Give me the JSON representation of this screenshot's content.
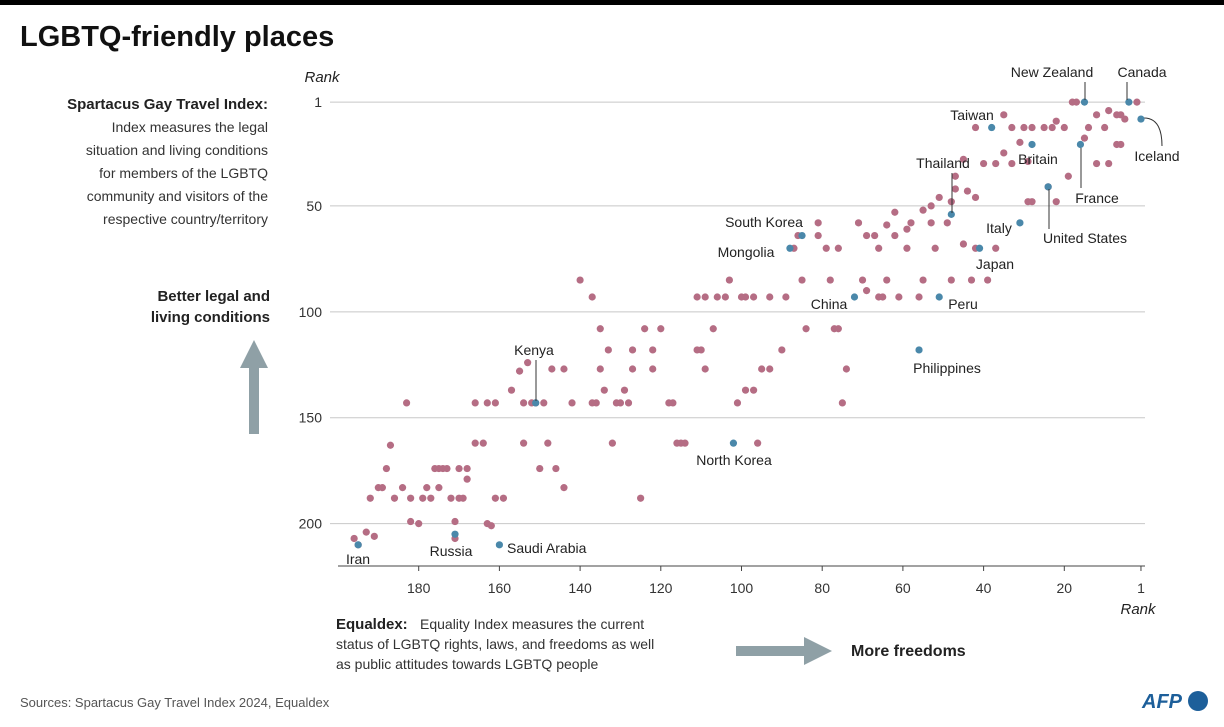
{
  "chart_data": {
    "type": "scatter",
    "title": "LGBTQ-friendly places",
    "y_axis_label": "Rank",
    "x_axis_label": "Rank",
    "y_description": {
      "heading": "Spartacus Gay Travel Index:",
      "lines": [
        "Index measures the legal",
        "situation and living conditions",
        "for members of the LGBTQ",
        "community and visitors of the",
        "respective country/territory"
      ]
    },
    "y_direction": [
      "Better legal and",
      "living conditions"
    ],
    "x_description": {
      "heading": "Equaldex:",
      "lines": [
        "Equality Index measures the current",
        "status of LGBTQ rights, laws, and freedoms as well",
        "as public attitudes towards LGBTQ people"
      ]
    },
    "x_direction": "More freedoms",
    "source": "Sources: Spartacus Gay Travel Index 2024, Equaldex",
    "credit": "AFP",
    "xlim": [
      200,
      0
    ],
    "ylim": [
      0,
      220
    ],
    "xticks": [
      180,
      160,
      140,
      120,
      100,
      80,
      60,
      40,
      20,
      1
    ],
    "yticks": [
      1,
      50,
      100,
      150,
      200
    ],
    "grid": true,
    "series": [
      {
        "color": "#b56d84",
        "x": [
          18,
          17,
          2,
          9,
          7,
          6,
          22,
          12,
          5,
          23,
          25,
          20,
          10,
          14,
          28,
          33,
          35,
          42,
          30,
          7,
          6,
          15,
          31,
          35,
          33,
          29,
          12,
          9,
          19,
          24,
          22,
          28,
          29,
          37,
          40,
          45,
          47,
          47,
          44,
          42,
          51,
          48,
          53,
          55,
          49,
          53,
          62,
          59,
          58,
          62,
          64,
          71,
          67,
          69,
          66,
          59,
          52,
          42,
          37,
          45,
          43,
          39,
          48,
          55,
          64,
          70,
          78,
          76,
          81,
          79,
          86,
          87,
          81,
          61,
          66,
          65,
          69,
          56,
          93,
          89,
          99,
          100,
          97,
          103,
          106,
          109,
          104,
          111,
          85,
          84,
          77,
          76,
          74,
          75,
          90,
          95,
          99,
          97,
          93,
          101,
          96,
          107,
          109,
          111,
          115,
          116,
          114,
          118,
          117,
          120,
          122,
          122,
          124,
          127,
          129,
          131,
          128,
          127,
          130,
          133,
          132,
          134,
          135,
          136,
          137,
          135,
          140,
          137,
          142,
          144,
          144,
          146,
          149,
          148,
          150,
          147,
          152,
          154,
          154,
          157,
          159,
          161,
          161,
          163,
          164,
          166,
          166,
          168,
          168,
          169,
          170,
          172,
          171,
          171,
          170,
          173,
          174,
          175,
          176,
          175,
          177,
          178,
          179,
          180,
          182,
          183,
          182,
          184,
          186,
          187,
          188,
          189,
          190,
          192,
          191,
          193,
          196,
          195,
          155,
          151,
          163,
          162,
          153,
          125,
          110
        ],
        "values": [
          1,
          1,
          1,
          5,
          7,
          7,
          10,
          7,
          9,
          13,
          13,
          13,
          13,
          13,
          13,
          13,
          7,
          13,
          13,
          21,
          21,
          18,
          20,
          25,
          30,
          29,
          30,
          30,
          36,
          41,
          48,
          48,
          48,
          30,
          30,
          28,
          36,
          42,
          43,
          46,
          46,
          48,
          50,
          52,
          58,
          58,
          64,
          61,
          58,
          53,
          59,
          58,
          64,
          64,
          70,
          70,
          70,
          70,
          70,
          68,
          85,
          85,
          85,
          85,
          85,
          85,
          85,
          70,
          64,
          70,
          64,
          70,
          58,
          93,
          93,
          93,
          90,
          93,
          93,
          93,
          93,
          93,
          93,
          85,
          93,
          93,
          93,
          93,
          85,
          108,
          108,
          108,
          127,
          143,
          118,
          127,
          137,
          137,
          127,
          143,
          162,
          108,
          127,
          118,
          162,
          162,
          162,
          143,
          143,
          108,
          118,
          127,
          108,
          127,
          137,
          143,
          143,
          118,
          143,
          118,
          162,
          137,
          127,
          143,
          143,
          108,
          85,
          93,
          143,
          127,
          183,
          174,
          143,
          162,
          174,
          127,
          143,
          162,
          143,
          137,
          188,
          188,
          143,
          143,
          162,
          162,
          143,
          179,
          174,
          188,
          188,
          188,
          199,
          207,
          174,
          174,
          174,
          174,
          174,
          183,
          188,
          183,
          188,
          200,
          199,
          143,
          188,
          183,
          188,
          163,
          174,
          183,
          183,
          188,
          206,
          204,
          207,
          210,
          128,
          143,
          200,
          201,
          124,
          188,
          118
        ]
      },
      {
        "color": "#4a88aa",
        "labels": [
          "New Zealand",
          "Canada",
          "Iceland",
          "Taiwan",
          "Britain",
          "France",
          "Thailand",
          "United States",
          "Italy",
          "Japan",
          "South Korea",
          "Mongolia",
          "China",
          "Peru",
          "Philippines",
          "Kenya",
          "North Korea",
          "Iran",
          "Russia",
          "Saudi Arabia"
        ],
        "x": [
          15,
          4,
          1,
          38,
          28,
          16,
          48,
          24,
          31,
          41,
          85,
          88,
          72,
          51,
          56,
          151,
          102,
          195,
          171,
          160
        ],
        "values": [
          1,
          1,
          9,
          13,
          21,
          21,
          54,
          41,
          58,
          70,
          64,
          70,
          93,
          93,
          118,
          143,
          162,
          210,
          205,
          210
        ]
      }
    ]
  }
}
